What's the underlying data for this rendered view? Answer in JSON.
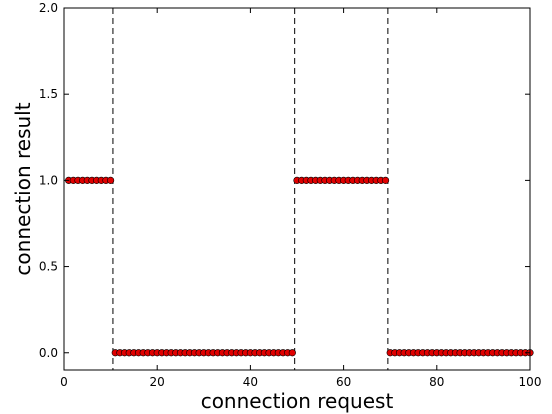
{
  "chart_data": {
    "type": "scatter",
    "xlabel": "connection request",
    "ylabel": "connection result",
    "xlim": [
      0,
      100
    ],
    "ylim": [
      -0.1,
      2.0
    ],
    "x_ticks": [
      0,
      20,
      40,
      60,
      80,
      100
    ],
    "x_tick_labels": [
      "0",
      "20",
      "40",
      "60",
      "80",
      "100"
    ],
    "y_ticks": [
      0.0,
      0.5,
      1.0,
      1.5,
      2.0
    ],
    "y_tick_labels": [
      "0.0",
      "0.5",
      "1.0",
      "1.5",
      "2.0"
    ],
    "vlines": [
      10.5,
      49.5,
      69.5
    ],
    "grid": false,
    "marker_color": "#e00000",
    "marker_edge_color": "#000000",
    "series": [
      {
        "x": [
          1,
          2,
          3,
          4,
          5,
          6,
          7,
          8,
          9,
          10,
          11,
          12,
          13,
          14,
          15,
          16,
          17,
          18,
          19,
          20,
          21,
          22,
          23,
          24,
          25,
          26,
          27,
          28,
          29,
          30,
          31,
          32,
          33,
          34,
          35,
          36,
          37,
          38,
          39,
          40,
          41,
          42,
          43,
          44,
          45,
          46,
          47,
          48,
          49,
          50,
          51,
          52,
          53,
          54,
          55,
          56,
          57,
          58,
          59,
          60,
          61,
          62,
          63,
          64,
          65,
          66,
          67,
          68,
          69,
          70,
          71,
          72,
          73,
          74,
          75,
          76,
          77,
          78,
          79,
          80,
          81,
          82,
          83,
          84,
          85,
          86,
          87,
          88,
          89,
          90,
          91,
          92,
          93,
          94,
          95,
          96,
          97,
          98,
          99,
          100
        ],
        "y": [
          1,
          1,
          1,
          1,
          1,
          1,
          1,
          1,
          1,
          1,
          0,
          0,
          0,
          0,
          0,
          0,
          0,
          0,
          0,
          0,
          0,
          0,
          0,
          0,
          0,
          0,
          0,
          0,
          0,
          0,
          0,
          0,
          0,
          0,
          0,
          0,
          0,
          0,
          0,
          0,
          0,
          0,
          0,
          0,
          0,
          0,
          0,
          0,
          0,
          1,
          1,
          1,
          1,
          1,
          1,
          1,
          1,
          1,
          1,
          1,
          1,
          1,
          1,
          1,
          1,
          1,
          1,
          1,
          1,
          0,
          0,
          0,
          0,
          0,
          0,
          0,
          0,
          0,
          0,
          0,
          0,
          0,
          0,
          0,
          0,
          0,
          0,
          0,
          0,
          0,
          0,
          0,
          0,
          0,
          0,
          0,
          0,
          0,
          0,
          0
        ]
      }
    ]
  }
}
